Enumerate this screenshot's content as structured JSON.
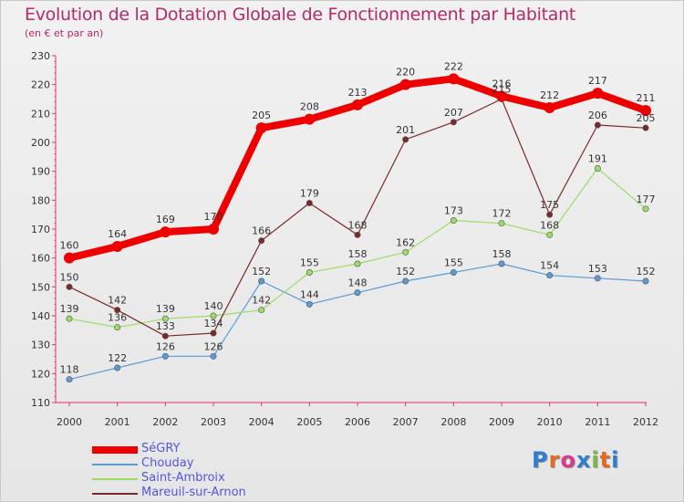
{
  "title": "Evolution de la Dotation Globale de Fonctionnement par Habitant",
  "subtitle": "(en € et par an)",
  "brand": "Proxiti",
  "colors": {
    "title": "#b32b69",
    "legend_text": "#5555dd",
    "axis": "#e0316c"
  },
  "chart_data": {
    "type": "line",
    "title": "Evolution de la Dotation Globale de Fonctionnement par Habitant",
    "subtitle": "(en € et par an)",
    "xlabel": "",
    "ylabel": "",
    "ylim": [
      110,
      230
    ],
    "yticks": [
      110,
      120,
      130,
      140,
      150,
      160,
      170,
      180,
      190,
      200,
      210,
      220,
      230
    ],
    "x": [
      2000,
      2001,
      2002,
      2003,
      2004,
      2005,
      2006,
      2007,
      2008,
      2009,
      2010,
      2011,
      2012
    ],
    "grid": false,
    "legend_position": "bottom-left",
    "series": [
      {
        "name": "SéGRY",
        "color": "#ee0000",
        "style": "thick",
        "values": [
          160,
          164,
          169,
          170,
          205,
          208,
          213,
          220,
          222,
          216,
          212,
          217,
          211
        ]
      },
      {
        "name": "Chouday",
        "color": "#5b9bd5",
        "style": "thin",
        "values": [
          118,
          122,
          126,
          126,
          152,
          144,
          148,
          152,
          155,
          158,
          154,
          153,
          152
        ]
      },
      {
        "name": "Saint-Ambroix",
        "color": "#99dd66",
        "style": "thin",
        "values": [
          139,
          136,
          139,
          140,
          142,
          155,
          158,
          162,
          173,
          172,
          168,
          191,
          177
        ]
      },
      {
        "name": "Mareuil-sur-Arnon",
        "color": "#7a2a2a",
        "style": "thin",
        "values": [
          150,
          142,
          133,
          134,
          166,
          179,
          168,
          201,
          207,
          215,
          175,
          206,
          205
        ]
      }
    ]
  }
}
